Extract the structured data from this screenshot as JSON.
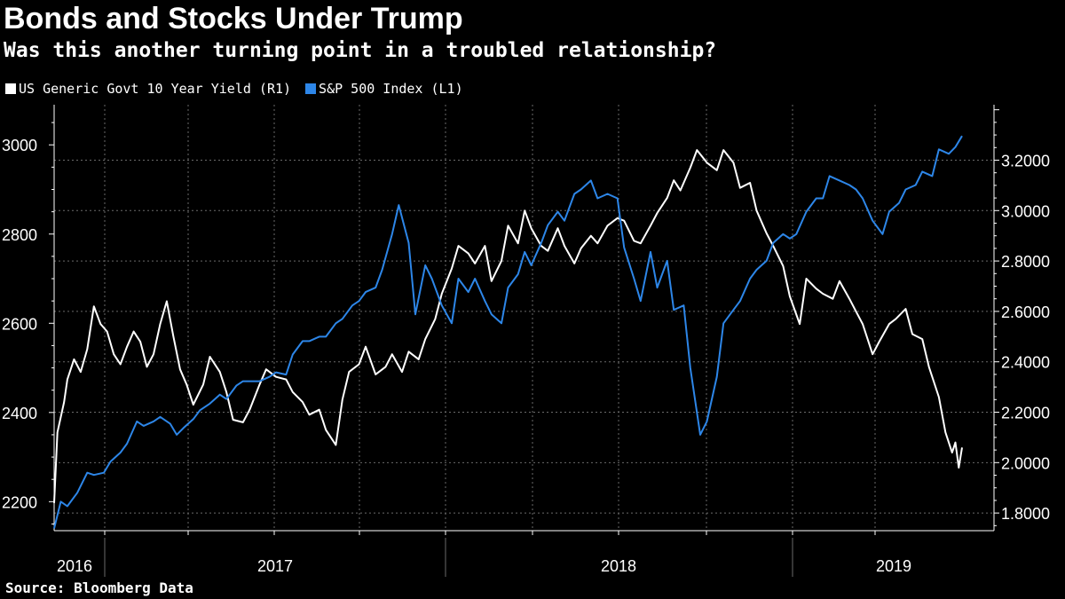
{
  "title": "Bonds and Stocks Under Trump",
  "subtitle": "Was this another turning point in a troubled relationship?",
  "source": "Source: Bloomberg Data",
  "colors": {
    "background": "#000000",
    "yield_line": "#ffffff",
    "spx_line": "#2d86e8",
    "grid": "#6a6a6a",
    "axis": "#ffffff"
  },
  "chart_data": {
    "type": "line",
    "title": "Bonds and Stocks Under Trump",
    "subtitle": "Was this another turning point in a troubled relationship?",
    "legend_position": "top-left",
    "grid": true,
    "x_axis": {
      "ticks": [
        "2016",
        "2017",
        "2018",
        "2019"
      ],
      "range": [
        2016.58,
        2019.32
      ]
    },
    "left_axis": {
      "label": "S&P 500 Index (L1)",
      "ticks": [
        "2200",
        "2400",
        "2600",
        "2800",
        "3000"
      ],
      "range": [
        2135,
        3090
      ]
    },
    "right_axis": {
      "label": "US Generic Govt 10 Year Yield (R1)",
      "ticks": [
        "1.8000",
        "2.0000",
        "2.2000",
        "2.4000",
        "2.6000",
        "2.8000",
        "3.0000",
        "3.2000"
      ],
      "range": [
        1.73,
        3.42
      ]
    },
    "series": [
      {
        "name": "US Generic Govt 10 Year Yield",
        "legend_label": "US Generic Govt 10 Year Yield (R1)",
        "axis": "right",
        "color": "#ffffff",
        "x": [
          2016.58,
          2016.59,
          2016.61,
          2016.62,
          2016.64,
          2016.66,
          2016.68,
          2016.7,
          2016.72,
          2016.74,
          2016.76,
          2016.78,
          2016.8,
          2016.82,
          2016.84,
          2016.86,
          2016.88,
          2016.9,
          2016.92,
          2016.94,
          2016.96,
          2016.98,
          2017.0,
          2017.03,
          2017.05,
          2017.08,
          2017.1,
          2017.12,
          2017.15,
          2017.17,
          2017.2,
          2017.22,
          2017.25,
          2017.28,
          2017.3,
          2017.33,
          2017.35,
          2017.38,
          2017.4,
          2017.43,
          2017.45,
          2017.47,
          2017.5,
          2017.52,
          2017.55,
          2017.58,
          2017.6,
          2017.63,
          2017.65,
          2017.68,
          2017.7,
          2017.73,
          2017.75,
          2017.78,
          2017.8,
          2017.83,
          2017.85,
          2017.88,
          2017.9,
          2017.93,
          2017.95,
          2017.98,
          2018.0,
          2018.02,
          2018.05,
          2018.07,
          2018.1,
          2018.12,
          2018.15,
          2018.17,
          2018.2,
          2018.22,
          2018.25,
          2018.28,
          2018.3,
          2018.33,
          2018.35,
          2018.38,
          2018.4,
          2018.43,
          2018.45,
          2018.47,
          2018.5,
          2018.52,
          2018.55,
          2018.58,
          2018.6,
          2018.63,
          2018.65,
          2018.68,
          2018.7,
          2018.73,
          2018.75,
          2018.78,
          2018.8,
          2018.83,
          2018.85,
          2018.88,
          2018.9,
          2018.93,
          2018.95,
          2018.98,
          2019.0,
          2019.02,
          2019.05,
          2019.07,
          2019.1,
          2019.12,
          2019.15,
          2019.17,
          2019.2,
          2019.22,
          2019.25,
          2019.27,
          2019.29,
          2019.3,
          2019.31,
          2019.32
        ],
        "values": [
          1.84,
          2.12,
          2.24,
          2.33,
          2.41,
          2.36,
          2.45,
          2.62,
          2.55,
          2.52,
          2.43,
          2.39,
          2.46,
          2.52,
          2.48,
          2.38,
          2.43,
          2.55,
          2.64,
          2.5,
          2.37,
          2.31,
          2.23,
          2.31,
          2.42,
          2.36,
          2.28,
          2.17,
          2.16,
          2.21,
          2.31,
          2.37,
          2.34,
          2.33,
          2.28,
          2.24,
          2.19,
          2.21,
          2.13,
          2.07,
          2.25,
          2.36,
          2.39,
          2.46,
          2.35,
          2.38,
          2.43,
          2.36,
          2.44,
          2.41,
          2.49,
          2.57,
          2.67,
          2.77,
          2.86,
          2.83,
          2.79,
          2.86,
          2.72,
          2.8,
          2.94,
          2.87,
          3.0,
          2.93,
          2.86,
          2.84,
          2.93,
          2.86,
          2.79,
          2.85,
          2.9,
          2.87,
          2.94,
          2.97,
          2.96,
          2.88,
          2.87,
          2.94,
          2.99,
          3.05,
          3.12,
          3.08,
          3.17,
          3.24,
          3.19,
          3.16,
          3.24,
          3.19,
          3.09,
          3.11,
          3.0,
          2.91,
          2.86,
          2.78,
          2.66,
          2.55,
          2.73,
          2.69,
          2.67,
          2.65,
          2.72,
          2.65,
          2.6,
          2.55,
          2.43,
          2.48,
          2.55,
          2.57,
          2.61,
          2.51,
          2.49,
          2.38,
          2.26,
          2.12,
          2.04,
          2.08,
          1.98,
          2.06
        ]
      },
      {
        "name": "S&P 500 Index",
        "legend_label": "S&P 500 Index (L1)",
        "axis": "left",
        "color": "#2d86e8",
        "x": [
          2016.58,
          2016.6,
          2016.62,
          2016.65,
          2016.68,
          2016.7,
          2016.73,
          2016.75,
          2016.78,
          2016.8,
          2016.83,
          2016.85,
          2016.88,
          2016.9,
          2016.93,
          2016.95,
          2016.97,
          2017.0,
          2017.02,
          2017.05,
          2017.08,
          2017.1,
          2017.13,
          2017.15,
          2017.18,
          2017.2,
          2017.23,
          2017.25,
          2017.28,
          2017.3,
          2017.33,
          2017.35,
          2017.38,
          2017.4,
          2017.43,
          2017.45,
          2017.48,
          2017.5,
          2017.52,
          2017.55,
          2017.57,
          2017.6,
          2017.62,
          2017.65,
          2017.67,
          2017.7,
          2017.72,
          2017.75,
          2017.78,
          2017.8,
          2017.83,
          2017.85,
          2017.88,
          2017.9,
          2017.93,
          2017.95,
          2017.98,
          2018.0,
          2018.02,
          2018.05,
          2018.07,
          2018.1,
          2018.12,
          2018.15,
          2018.17,
          2018.2,
          2018.22,
          2018.25,
          2018.28,
          2018.3,
          2018.33,
          2018.35,
          2018.38,
          2018.4,
          2018.43,
          2018.45,
          2018.48,
          2018.5,
          2018.53,
          2018.55,
          2018.58,
          2018.6,
          2018.63,
          2018.65,
          2018.68,
          2018.7,
          2018.73,
          2018.75,
          2018.78,
          2018.8,
          2018.82,
          2018.85,
          2018.88,
          2018.9,
          2018.92,
          2018.95,
          2018.98,
          2019.0,
          2019.02,
          2019.05,
          2019.08,
          2019.1,
          2019.13,
          2019.15,
          2019.18,
          2019.2,
          2019.23,
          2019.25,
          2019.28,
          2019.3,
          2019.32
        ],
        "values": [
          2140,
          2200,
          2190,
          2220,
          2265,
          2260,
          2265,
          2290,
          2310,
          2330,
          2380,
          2370,
          2380,
          2390,
          2375,
          2350,
          2365,
          2385,
          2405,
          2420,
          2440,
          2430,
          2460,
          2470,
          2470,
          2470,
          2480,
          2490,
          2485,
          2530,
          2560,
          2560,
          2570,
          2570,
          2600,
          2610,
          2640,
          2650,
          2670,
          2680,
          2720,
          2800,
          2865,
          2780,
          2620,
          2730,
          2700,
          2640,
          2600,
          2700,
          2670,
          2700,
          2650,
          2620,
          2600,
          2680,
          2710,
          2760,
          2730,
          2780,
          2820,
          2850,
          2830,
          2890,
          2900,
          2920,
          2880,
          2890,
          2880,
          2770,
          2700,
          2650,
          2760,
          2680,
          2740,
          2630,
          2640,
          2500,
          2350,
          2380,
          2480,
          2600,
          2630,
          2650,
          2700,
          2720,
          2740,
          2780,
          2800,
          2790,
          2800,
          2850,
          2880,
          2880,
          2930,
          2920,
          2910,
          2900,
          2880,
          2830,
          2800,
          2850,
          2870,
          2900,
          2910,
          2940,
          2930,
          2990,
          2980,
          2995,
          3020
        ]
      }
    ]
  }
}
